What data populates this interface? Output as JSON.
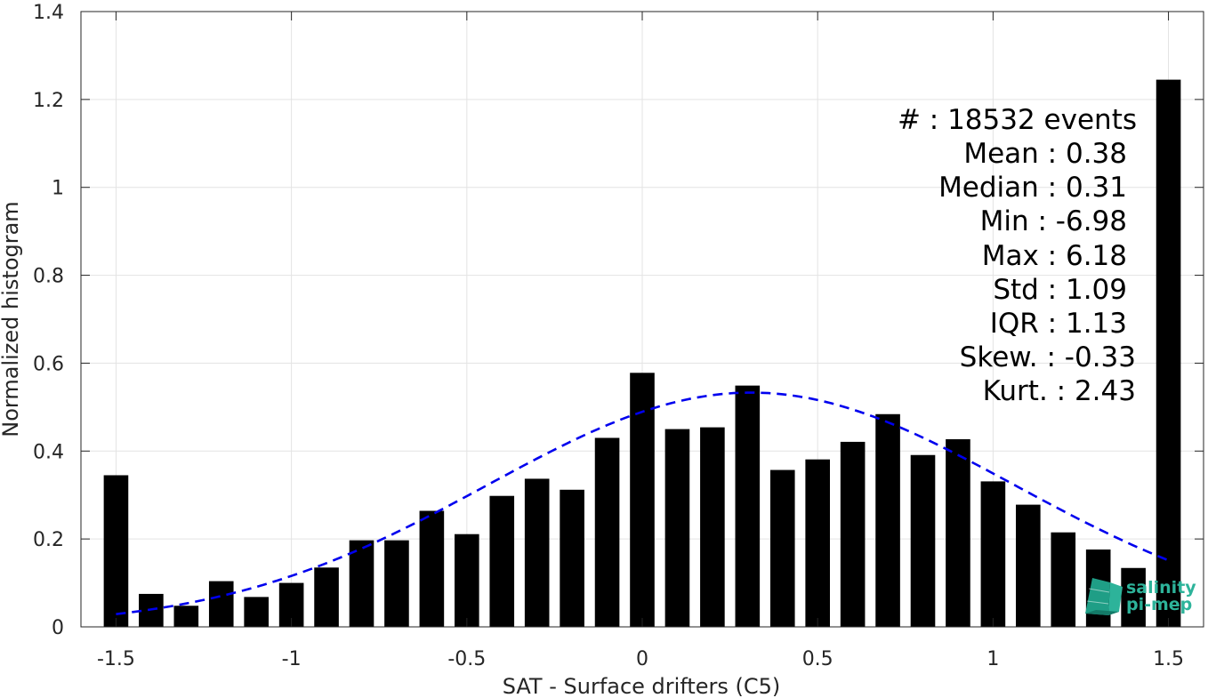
{
  "chart_data": {
    "type": "bar",
    "xlabel": "SAT - Surface drifters (C5)",
    "ylabel": "Normalized histogram",
    "xlim": [
      -1.6,
      1.6
    ],
    "ylim": [
      0,
      1.4
    ],
    "x_ticks": [
      -1.5,
      -1,
      -0.5,
      0,
      0.5,
      1,
      1.5
    ],
    "x_tick_labels": [
      "-1.5",
      "-1",
      "-0.5",
      "0",
      "0.5",
      "1",
      "1.5"
    ],
    "y_ticks": [
      0,
      0.2,
      0.4,
      0.6,
      0.8,
      1,
      1.2,
      1.4
    ],
    "y_tick_labels": [
      "0",
      "0.2",
      "0.4",
      "0.6",
      "0.8",
      "1",
      "1.2",
      "1.4"
    ],
    "grid": true,
    "bar_width": 0.07,
    "bar_color": "#000000",
    "bins": [
      {
        "x": -1.5,
        "y": 0.345
      },
      {
        "x": -1.4,
        "y": 0.075
      },
      {
        "x": -1.3,
        "y": 0.048
      },
      {
        "x": -1.2,
        "y": 0.104
      },
      {
        "x": -1.1,
        "y": 0.068
      },
      {
        "x": -1.0,
        "y": 0.1
      },
      {
        "x": -0.9,
        "y": 0.135
      },
      {
        "x": -0.8,
        "y": 0.197
      },
      {
        "x": -0.7,
        "y": 0.197
      },
      {
        "x": -0.6,
        "y": 0.264
      },
      {
        "x": -0.5,
        "y": 0.211
      },
      {
        "x": -0.4,
        "y": 0.298
      },
      {
        "x": -0.3,
        "y": 0.337
      },
      {
        "x": -0.2,
        "y": 0.312
      },
      {
        "x": -0.1,
        "y": 0.43
      },
      {
        "x": 0.0,
        "y": 0.578
      },
      {
        "x": 0.1,
        "y": 0.45
      },
      {
        "x": 0.2,
        "y": 0.454
      },
      {
        "x": 0.3,
        "y": 0.549
      },
      {
        "x": 0.4,
        "y": 0.357
      },
      {
        "x": 0.5,
        "y": 0.381
      },
      {
        "x": 0.6,
        "y": 0.421
      },
      {
        "x": 0.7,
        "y": 0.484
      },
      {
        "x": 0.8,
        "y": 0.391
      },
      {
        "x": 0.9,
        "y": 0.427
      },
      {
        "x": 1.0,
        "y": 0.331
      },
      {
        "x": 1.1,
        "y": 0.278
      },
      {
        "x": 1.2,
        "y": 0.215
      },
      {
        "x": 1.3,
        "y": 0.176
      },
      {
        "x": 1.4,
        "y": 0.134
      },
      {
        "x": 1.5,
        "y": 1.245
      }
    ],
    "fit_curve": {
      "type": "gaussian",
      "style": "dashed",
      "color": "#0000ee",
      "mean": 0.31,
      "std": 0.75,
      "x_range": [
        -1.5,
        1.5
      ]
    },
    "stats": [
      "#  : 18532 events",
      "Mean : 0.38",
      "Median : 0.31",
      "Min : -6.98",
      "Max : 6.18",
      "Std : 1.09",
      "IQR : 1.13",
      "Skew. : -0.33",
      "Kurt. : 2.43"
    ]
  },
  "logo": {
    "line1": "salinity",
    "line2": "pi-mep",
    "icon": "cube-logo-icon",
    "color": "#2db39a"
  }
}
